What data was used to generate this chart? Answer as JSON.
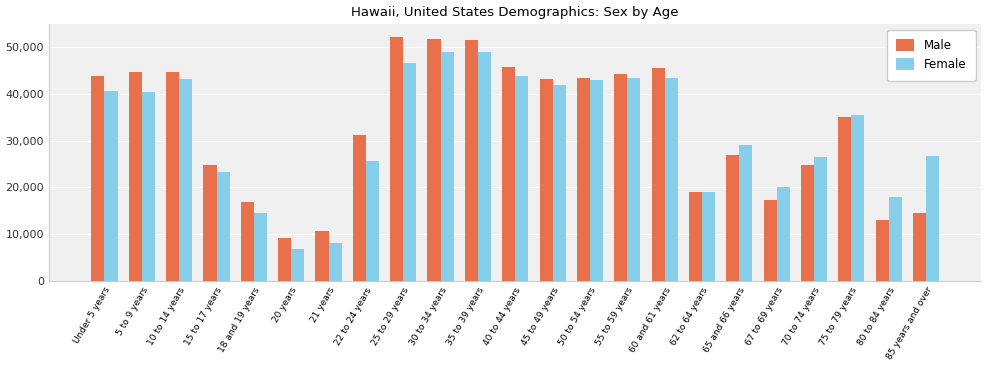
{
  "title": "Hawaii, United States Demographics: Sex by Age",
  "categories": [
    "Under 5 years",
    "5 to 9 years",
    "10 to 14 years",
    "15 to 17 years",
    "18 and 19 years",
    "20 years",
    "21 years",
    "22 to 24 years",
    "25 to 29 years",
    "30 to 34 years",
    "35 to 39 years",
    "40 to 44 years",
    "45 to 49 years",
    "50 to 54 years",
    "55 to 59 years",
    "60 and 61 years",
    "62 to 64 years",
    "65 and 66 years",
    "67 to 69 years",
    "70 to 74 years",
    "75 to 79 years",
    "80 to 84 years",
    "85 years and over"
  ],
  "male": [
    43800,
    44800,
    44800,
    24800,
    16800,
    9200,
    10600,
    31200,
    52200,
    51800,
    51500,
    45700,
    43200,
    43500,
    44300,
    45500,
    19000,
    27000,
    17400,
    24700,
    35000,
    13000,
    14500
  ],
  "female": [
    40700,
    40500,
    43200,
    23400,
    14500,
    6900,
    8200,
    25700,
    46700,
    48900,
    49000,
    43900,
    41900,
    43000,
    43400,
    43500,
    19100,
    29000,
    20100,
    26500,
    35500,
    17900,
    26800
  ],
  "male_color": "#E8704A",
  "female_color": "#87CEEB",
  "ylim": [
    0,
    55000
  ],
  "yticks": [
    0,
    10000,
    20000,
    30000,
    40000,
    50000
  ],
  "background_color": "#ffffff",
  "plot_bg_color": "#f0f0f0",
  "legend_labels": [
    "Male",
    "Female"
  ],
  "figsize": [
    9.87,
    3.67
  ],
  "dpi": 100
}
